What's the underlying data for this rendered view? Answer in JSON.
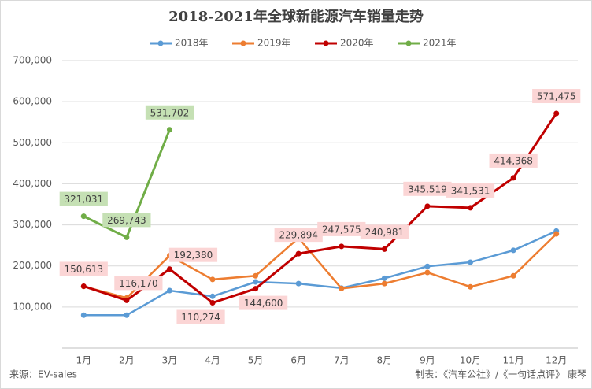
{
  "chart_data": {
    "type": "line",
    "title": "2018-2021年全球新能源汽车销量走势",
    "categories": [
      "1月",
      "2月",
      "3月",
      "4月",
      "5月",
      "6月",
      "7月",
      "8月",
      "9月",
      "10月",
      "11月",
      "12月"
    ],
    "series": [
      {
        "name": "2018年",
        "color": "#5b9bd5",
        "values": [
          80000,
          80000,
          140000,
          126000,
          161000,
          157000,
          146000,
          170000,
          199000,
          209000,
          238000,
          285000
        ]
      },
      {
        "name": "2019年",
        "color": "#ed7d31",
        "values": [
          150000,
          122000,
          225000,
          167000,
          176000,
          268000,
          145000,
          157000,
          184000,
          149000,
          176000,
          278000
        ]
      },
      {
        "name": "2020年",
        "color": "#c00000",
        "values": [
          150613,
          116170,
          192380,
          110274,
          144600,
          229894,
          247575,
          240981,
          345519,
          341531,
          414368,
          571475
        ],
        "value_labels": [
          "150,613",
          "116,170",
          "192,380",
          "110,274",
          "144,600",
          "229,894",
          "247,575",
          "240,981",
          "345,519",
          "341,531",
          "414,368",
          "571,475"
        ]
      },
      {
        "name": "2021年",
        "color": "#70ad47",
        "values": [
          321031,
          269743,
          531702,
          null,
          null,
          null,
          null,
          null,
          null,
          null,
          null,
          null
        ],
        "value_labels": [
          "321,031",
          "269,743",
          "531,702",
          null,
          null,
          null,
          null,
          null,
          null,
          null,
          null,
          null
        ]
      }
    ],
    "ylim": [
      0,
      700000
    ],
    "yticks": [
      {
        "value": 100000,
        "label": "100,000"
      },
      {
        "value": 200000,
        "label": "200,000"
      },
      {
        "value": 300000,
        "label": "300,000"
      },
      {
        "value": 400000,
        "label": "400,000"
      },
      {
        "value": 500000,
        "label": "500,000"
      },
      {
        "value": 600000,
        "label": "600,000"
      },
      {
        "value": 700000,
        "label": "700,000"
      }
    ],
    "grid": true,
    "legend": "top",
    "source": "来源：EV-sales",
    "credit": "制表：《汽车公社》/《一句话点评》 康琴"
  }
}
